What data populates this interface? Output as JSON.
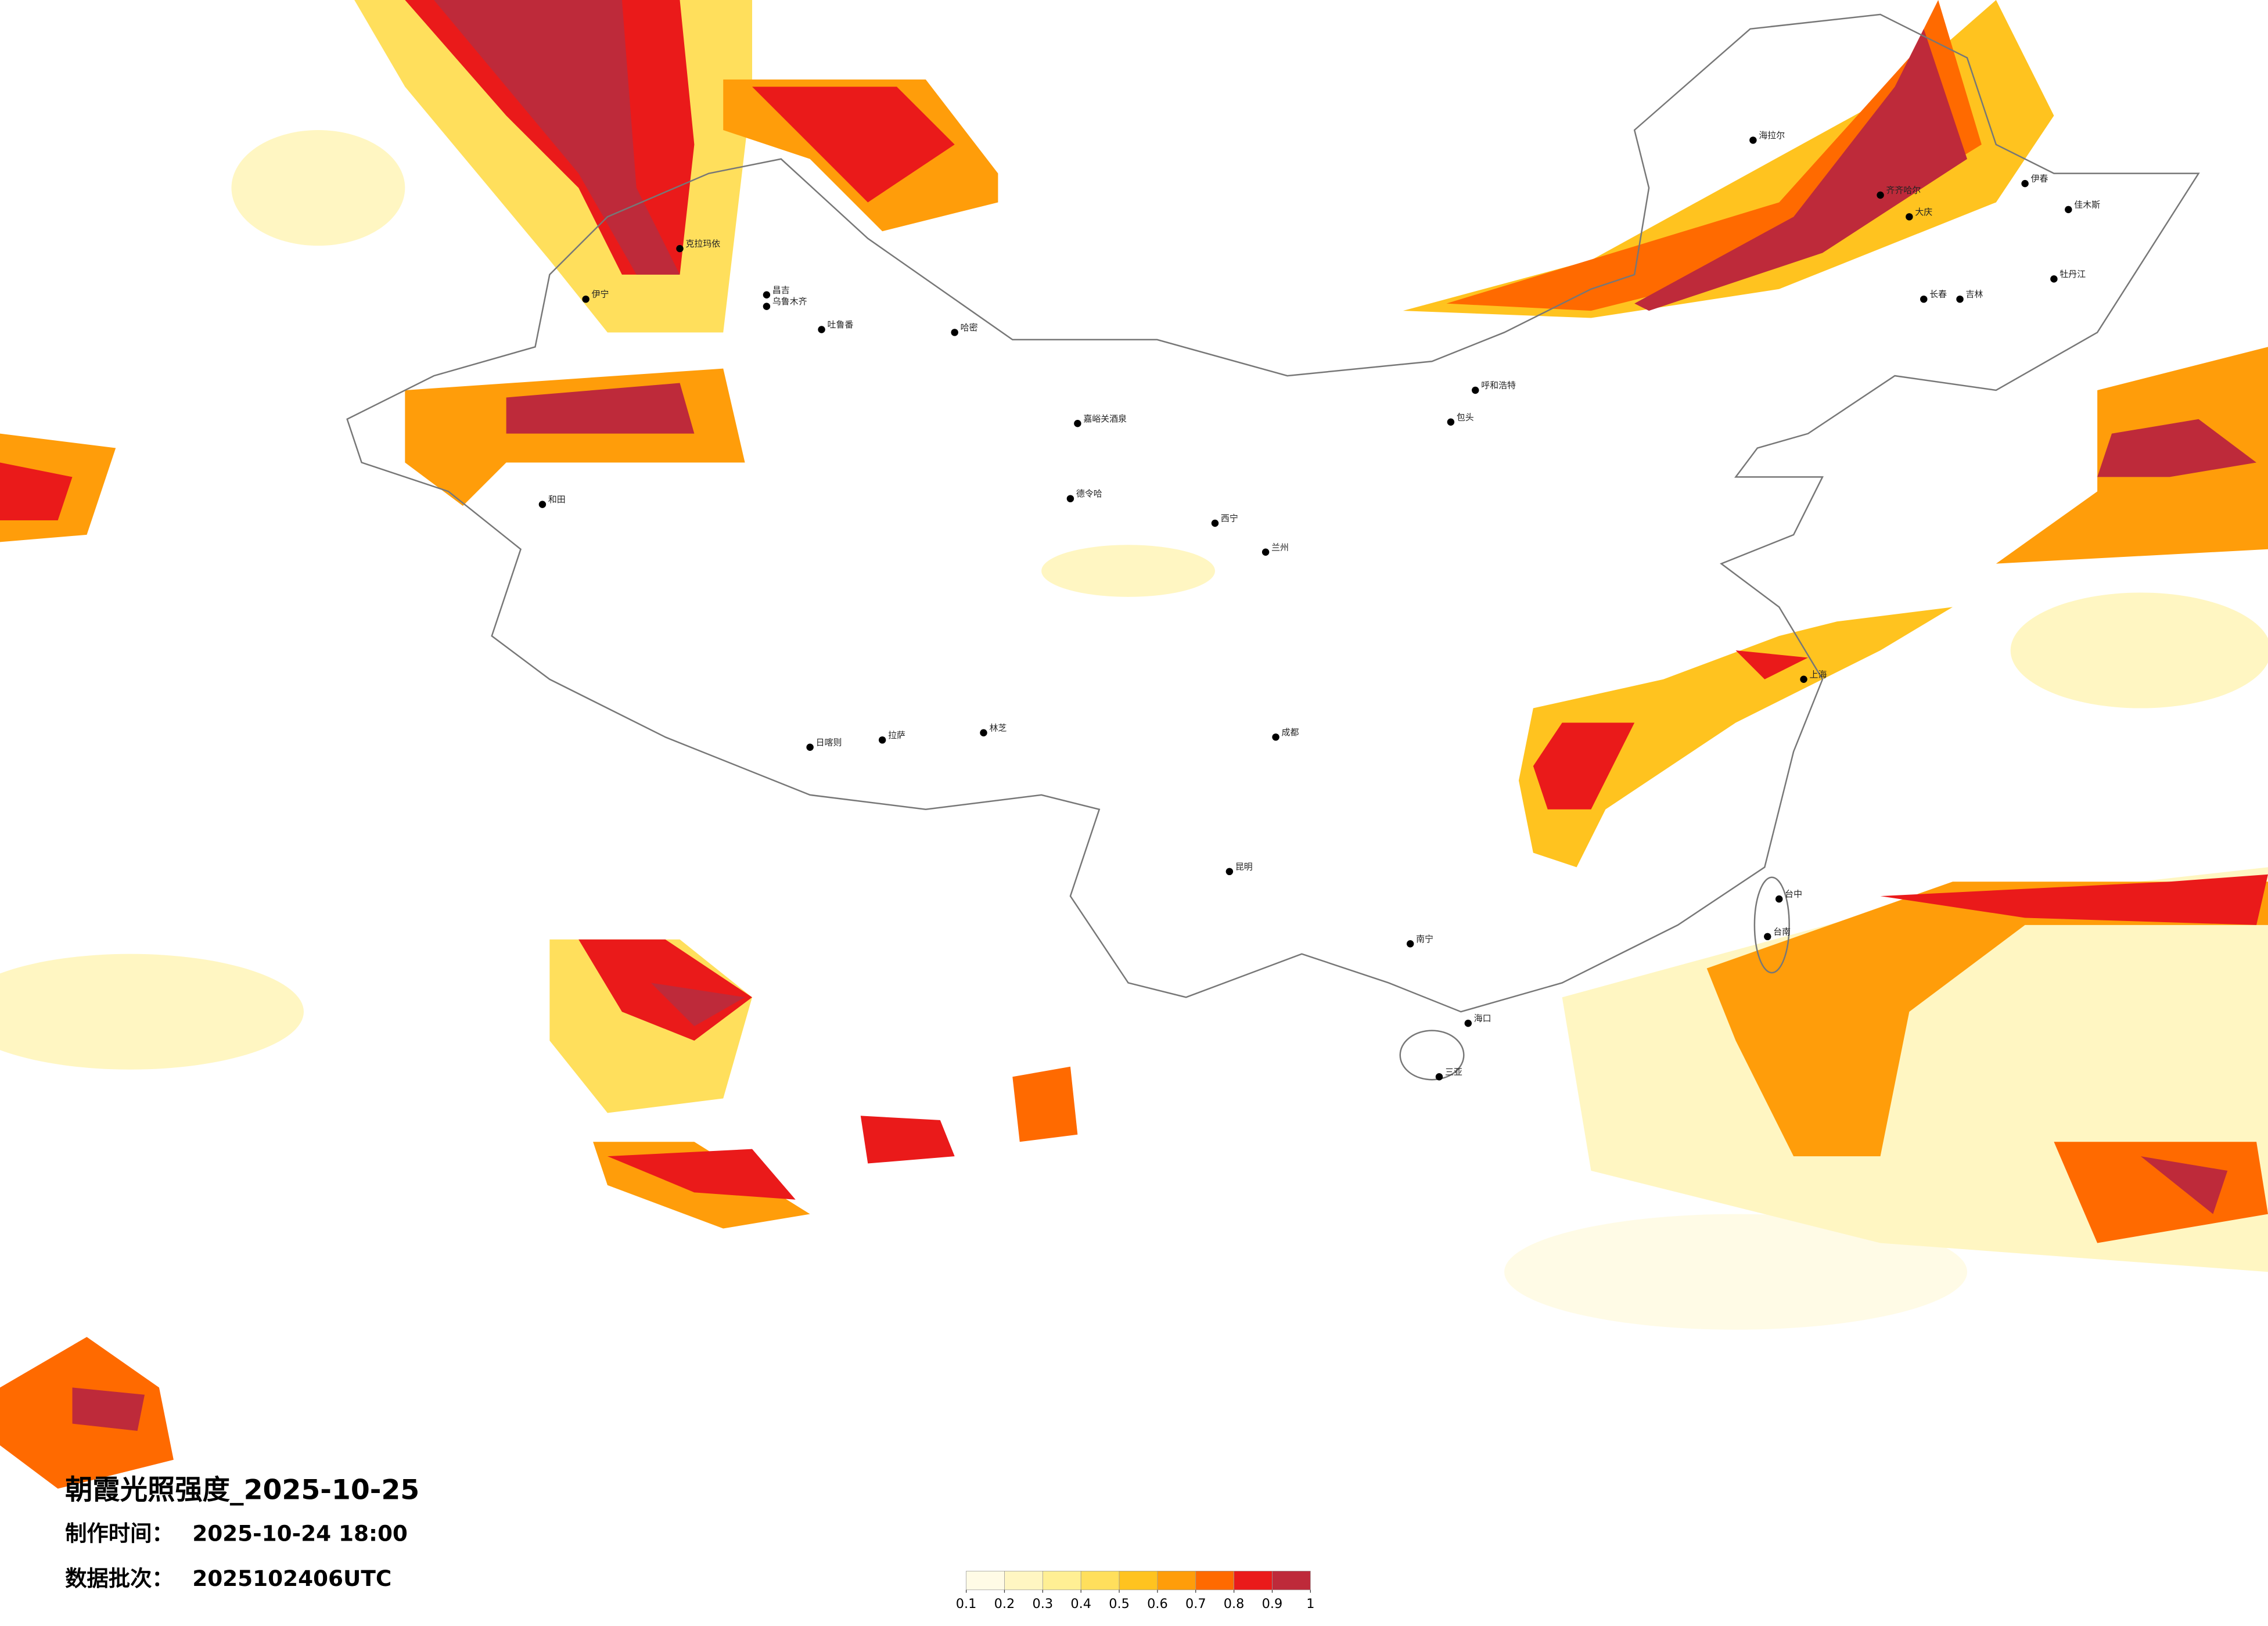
{
  "map": {
    "title": "朝霞光照强度_2025-10-25",
    "made_time_label": "制作时间：",
    "made_time": "2025-10-24 18:00",
    "batch_label": "数据批次：",
    "batch": "2025102406UTC"
  },
  "colorbar": {
    "colors": [
      "#fffbe6",
      "#fff6c2",
      "#ffef94",
      "#ffdf5c",
      "#ffc31f",
      "#ff9d0a",
      "#ff6a00",
      "#ea1a1a",
      "#be2a3a"
    ],
    "ticks": [
      0.1,
      0.2,
      0.3,
      0.4,
      0.5,
      0.6,
      0.7,
      0.8,
      0.9,
      1
    ]
  },
  "cities": [
    "克拉玛依",
    "伊宁",
    "昌吉",
    "乌鲁木齐",
    "吐鲁番",
    "哈密",
    "和田",
    "嘉峪关酒泉",
    "德令哈",
    "日喀则",
    "拉萨",
    "林芝",
    "海拉尔",
    "齐齐哈尔",
    "大庆",
    "伊春",
    "佳木斯",
    "牡丹江",
    "长春",
    "吉林",
    "呼和浩特",
    "包头",
    "西宁",
    "兰州",
    "成都",
    "昆明",
    "南宁",
    "海口",
    "三亚",
    "台中",
    "台南",
    "上海"
  ]
}
